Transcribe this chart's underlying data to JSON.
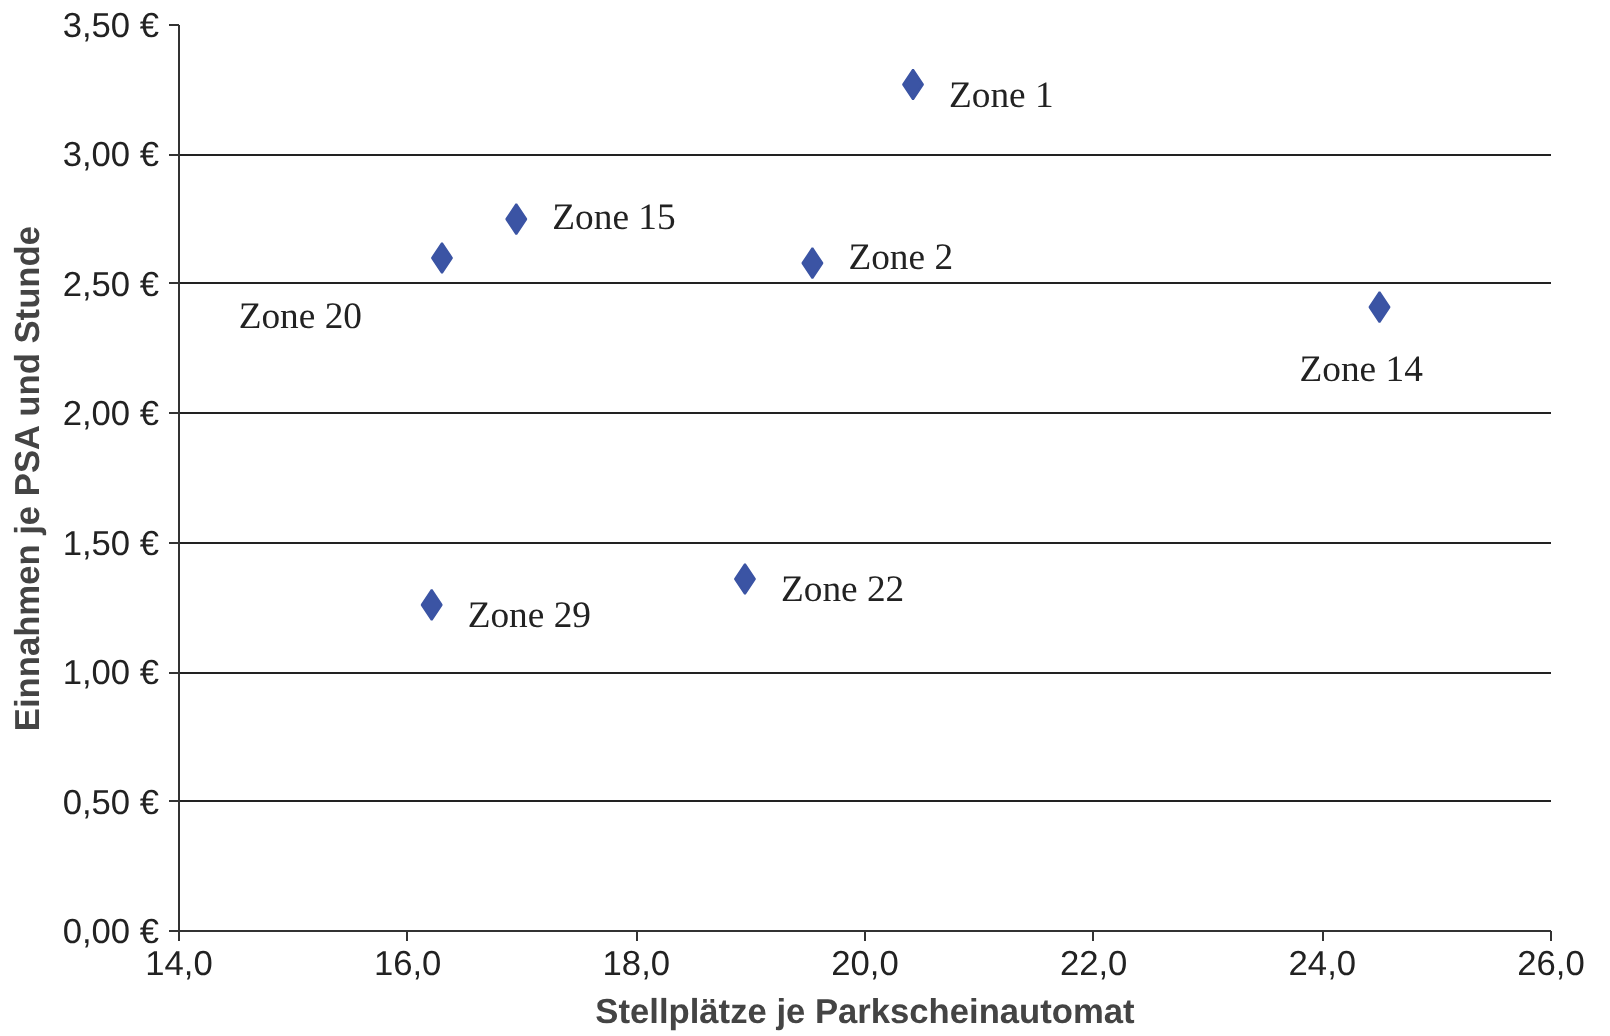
{
  "chart_data": {
    "type": "scatter",
    "xlabel": "Stellplätze je Parkscheinautomat",
    "ylabel": "Einnahmen je PSA und Stunde",
    "x": [
      20.42,
      16.95,
      16.3,
      19.54,
      24.5,
      18.95,
      16.21
    ],
    "values": [
      3.27,
      2.75,
      2.6,
      2.58,
      2.41,
      1.36,
      1.26
    ],
    "color": "#3b54a4",
    "marker": "diamond",
    "grid": "y",
    "xlim": [
      14,
      26
    ],
    "xticks": [
      {
        "value": 14,
        "label": "14,0"
      },
      {
        "value": 16,
        "label": "16,0"
      },
      {
        "value": 18,
        "label": "18,0"
      },
      {
        "value": 20,
        "label": "20,0"
      },
      {
        "value": 22,
        "label": "22,0"
      },
      {
        "value": 24,
        "label": "24,0"
      },
      {
        "value": 26,
        "label": "26,0"
      }
    ],
    "ylim": [
      0,
      3.5
    ],
    "yticks": [
      {
        "value": 0,
        "label": "0,00 €"
      },
      {
        "value": 0.5,
        "label": "0,50 €"
      },
      {
        "value": 1,
        "label": "1,00 €"
      },
      {
        "value": 1.5,
        "label": "1,50 €"
      },
      {
        "value": 2,
        "label": "2,00 €"
      },
      {
        "value": 2.5,
        "label": "2,50 €"
      },
      {
        "value": 3,
        "label": "3,00 €"
      },
      {
        "value": 3.5,
        "label": "3,50 €"
      }
    ],
    "annotations": [
      {
        "text": "Zone 1",
        "x": 20.42,
        "y": 3.27
      },
      {
        "text": "Zone 15",
        "x": 16.95,
        "y": 2.75
      },
      {
        "text": "Zone 20",
        "x": 16.3,
        "y": 2.6
      },
      {
        "text": "Zone 2",
        "x": 19.54,
        "y": 2.58
      },
      {
        "text": "Zone 14",
        "x": 24.5,
        "y": 2.41
      },
      {
        "text": "Zone 22",
        "x": 18.95,
        "y": 1.36
      },
      {
        "text": "Zone 29",
        "x": 16.21,
        "y": 1.26
      }
    ]
  }
}
